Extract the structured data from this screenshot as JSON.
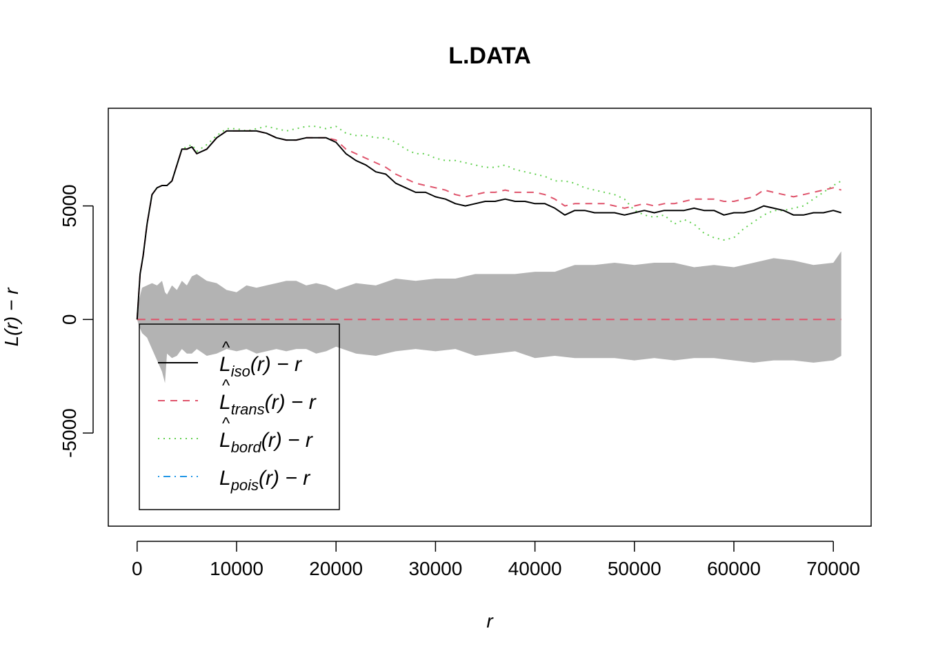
{
  "chart_data": {
    "type": "line",
    "title": "L.DATA",
    "xlabel": "r",
    "ylabel": "L(r) − r",
    "xlim": [
      -2900,
      73800
    ],
    "ylim": [
      -9100,
      9300
    ],
    "x_ticks": [
      0,
      10000,
      20000,
      30000,
      40000,
      50000,
      60000,
      70000
    ],
    "x_tick_labels": [
      "0",
      "10000",
      "20000",
      "30000",
      "40000",
      "50000",
      "60000",
      "70000"
    ],
    "y_ticks": [
      -5000,
      0,
      5000
    ],
    "y_tick_labels": [
      "-5000",
      "0",
      "5000"
    ],
    "grid": false,
    "legend_position": "bottom-left",
    "x": [
      0,
      300,
      600,
      1000,
      1500,
      2000,
      2500,
      3000,
      3500,
      4000,
      4500,
      5000,
      5500,
      6000,
      7000,
      8000,
      9000,
      10000,
      11000,
      12000,
      13000,
      14000,
      15000,
      16000,
      17000,
      18000,
      19000,
      20000,
      21000,
      22000,
      23000,
      24000,
      25000,
      26000,
      27000,
      28000,
      29000,
      30000,
      31000,
      32000,
      33000,
      34000,
      35000,
      36000,
      37000,
      38000,
      39000,
      40000,
      41000,
      42000,
      43000,
      44000,
      45000,
      46000,
      47000,
      48000,
      49000,
      50000,
      51000,
      52000,
      53000,
      54000,
      55000,
      56000,
      57000,
      58000,
      59000,
      60000,
      61000,
      62000,
      63000,
      64000,
      65000,
      66000,
      67000,
      68000,
      69000,
      70000,
      70800
    ],
    "series": [
      {
        "name": "L̂iso(r) − r",
        "color": "#000000",
        "dash": "solid",
        "values": [
          0,
          2000,
          2800,
          4200,
          5500,
          5800,
          5900,
          5900,
          6100,
          6800,
          7500,
          7500,
          7600,
          7300,
          7500,
          8000,
          8300,
          8300,
          8300,
          8300,
          8200,
          8000,
          7900,
          7900,
          8000,
          8000,
          8000,
          7800,
          7300,
          7000,
          6800,
          6500,
          6400,
          6000,
          5800,
          5600,
          5600,
          5400,
          5300,
          5100,
          5000,
          5100,
          5200,
          5200,
          5300,
          5200,
          5200,
          5100,
          5100,
          4900,
          4600,
          4800,
          4800,
          4700,
          4700,
          4700,
          4600,
          4700,
          4800,
          4700,
          4800,
          4800,
          4800,
          4900,
          4800,
          4800,
          4600,
          4700,
          4700,
          4800,
          5000,
          4900,
          4800,
          4600,
          4600,
          4700,
          4700,
          4800,
          4700
        ]
      },
      {
        "name": "L̂trans(r) − r",
        "color": "#DF536B",
        "dash": "dashed",
        "values": [
          0,
          2000,
          2800,
          4200,
          5500,
          5800,
          5900,
          5900,
          6100,
          6800,
          7500,
          7500,
          7600,
          7300,
          7500,
          8000,
          8300,
          8300,
          8300,
          8300,
          8200,
          8000,
          7900,
          7900,
          8000,
          8000,
          8000,
          7900,
          7500,
          7300,
          7100,
          6900,
          6700,
          6400,
          6200,
          6000,
          5900,
          5800,
          5700,
          5500,
          5400,
          5500,
          5600,
          5600,
          5700,
          5600,
          5600,
          5600,
          5500,
          5300,
          5000,
          5100,
          5100,
          5100,
          5100,
          5000,
          4900,
          5000,
          5100,
          5000,
          5100,
          5100,
          5200,
          5300,
          5300,
          5300,
          5200,
          5200,
          5300,
          5400,
          5700,
          5600,
          5500,
          5400,
          5500,
          5600,
          5700,
          5800,
          5700
        ]
      },
      {
        "name": "L̂bord(r) − r",
        "color": "#61D04F",
        "dash": "dotted",
        "values": [
          0,
          2000,
          2800,
          4200,
          5500,
          5800,
          5900,
          5900,
          6100,
          6800,
          7500,
          7600,
          7700,
          7400,
          7700,
          8100,
          8400,
          8400,
          8300,
          8400,
          8500,
          8400,
          8300,
          8400,
          8500,
          8500,
          8400,
          8500,
          8200,
          8100,
          8100,
          8000,
          8000,
          7800,
          7500,
          7300,
          7300,
          7100,
          7000,
          7000,
          6900,
          6800,
          6700,
          6700,
          6800,
          6600,
          6500,
          6400,
          6300,
          6100,
          6100,
          6000,
          5800,
          5700,
          5600,
          5500,
          5300,
          4800,
          4600,
          4500,
          4600,
          4200,
          4400,
          4200,
          3800,
          3600,
          3500,
          3600,
          4000,
          4300,
          4600,
          4800,
          4800,
          4900,
          5000,
          5300,
          5600,
          5900,
          6100
        ]
      },
      {
        "name": "Lpois(r) − r",
        "color": "#2297E6",
        "dash": "dotdash",
        "values": [
          0,
          0,
          0,
          0,
          0,
          0,
          0,
          0,
          0,
          0,
          0,
          0,
          0,
          0,
          0,
          0,
          0,
          0,
          0,
          0,
          0,
          0,
          0,
          0,
          0,
          0,
          0,
          0,
          0,
          0,
          0,
          0,
          0,
          0,
          0,
          0,
          0,
          0,
          0,
          0,
          0,
          0,
          0,
          0,
          0,
          0,
          0,
          0,
          0,
          0,
          0,
          0,
          0,
          0,
          0,
          0,
          0,
          0,
          0,
          0,
          0,
          0,
          0,
          0,
          0,
          0,
          0,
          0,
          0,
          0,
          0,
          0,
          0,
          0,
          0,
          0,
          0,
          0,
          0
        ]
      }
    ],
    "envelope": {
      "color": "#B3B3B3",
      "x": [
        0,
        200,
        500,
        1000,
        1500,
        2000,
        2500,
        2800,
        3000,
        3500,
        4000,
        4500,
        5000,
        5500,
        6000,
        7000,
        8000,
        9000,
        10000,
        11000,
        12000,
        13000,
        14000,
        15000,
        16000,
        17000,
        18000,
        19000,
        20000,
        22000,
        24000,
        26000,
        28000,
        30000,
        32000,
        34000,
        36000,
        38000,
        40000,
        42000,
        44000,
        46000,
        48000,
        50000,
        52000,
        54000,
        56000,
        58000,
        60000,
        62000,
        64000,
        66000,
        68000,
        70000,
        70800
      ],
      "upper": [
        0,
        900,
        1400,
        1500,
        1600,
        1500,
        1700,
        1200,
        1100,
        1500,
        1300,
        1700,
        1500,
        1900,
        2000,
        1700,
        1600,
        1300,
        1200,
        1500,
        1400,
        1500,
        1600,
        1700,
        1700,
        1500,
        1600,
        1500,
        1300,
        1600,
        1500,
        1800,
        1700,
        1800,
        1800,
        2000,
        2000,
        2000,
        2100,
        2100,
        2400,
        2400,
        2500,
        2400,
        2500,
        2500,
        2300,
        2400,
        2300,
        2500,
        2700,
        2600,
        2400,
        2500,
        3000
      ],
      "lower": [
        0,
        -300,
        -600,
        -800,
        -1300,
        -1800,
        -2300,
        -2800,
        -1500,
        -1700,
        -1600,
        -1300,
        -1500,
        -1500,
        -1300,
        -1600,
        -1500,
        -1300,
        -1400,
        -1300,
        -1500,
        -1400,
        -1300,
        -1400,
        -1300,
        -1300,
        -1500,
        -1400,
        -1200,
        -1500,
        -1600,
        -1400,
        -1300,
        -1400,
        -1300,
        -1600,
        -1500,
        -1400,
        -1700,
        -1600,
        -1700,
        -1700,
        -1700,
        -1800,
        -1700,
        -1800,
        -1700,
        -1700,
        -1800,
        -1900,
        -1800,
        -1800,
        -1900,
        -1800,
        -1600
      ]
    },
    "legend": [
      {
        "main": "L",
        "hat": true,
        "sub": "iso",
        "tail": "(r) − r",
        "color": "#000000",
        "dash": "solid"
      },
      {
        "main": "L",
        "hat": true,
        "sub": "trans",
        "tail": "(r) − r",
        "color": "#DF536B",
        "dash": "dashed"
      },
      {
        "main": "L",
        "hat": true,
        "sub": "bord",
        "tail": "(r) − r",
        "color": "#61D04F",
        "dash": "dotted"
      },
      {
        "main": "L",
        "hat": false,
        "sub": "pois",
        "tail": "(r) − r",
        "color": "#2297E6",
        "dash": "dotdash"
      }
    ]
  }
}
